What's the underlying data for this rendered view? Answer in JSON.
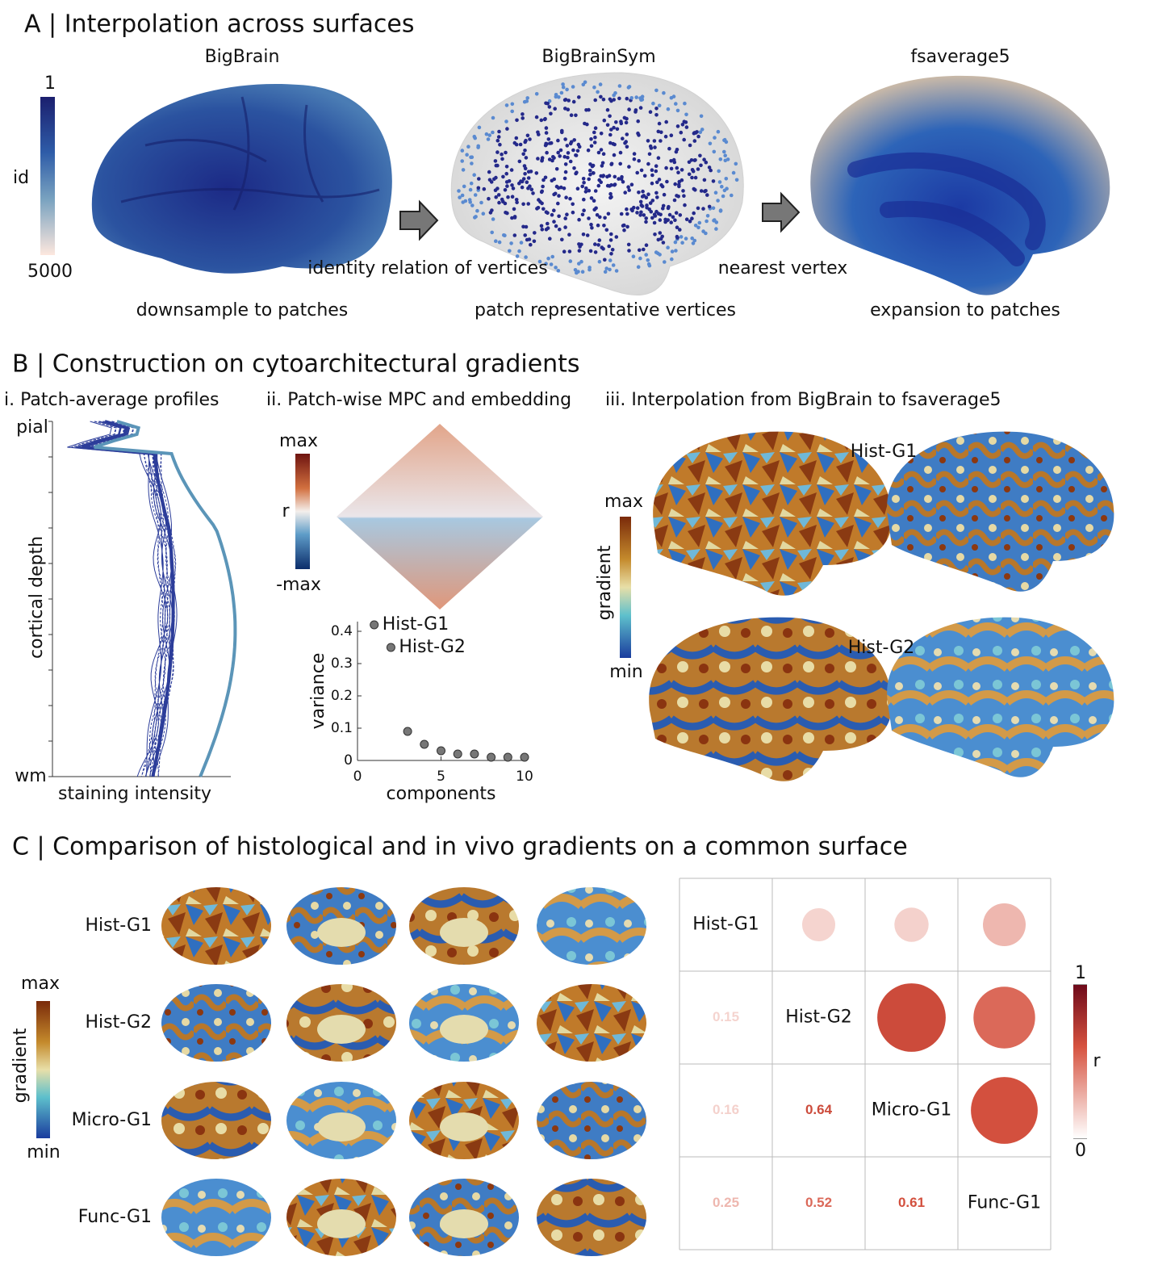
{
  "panel_a": {
    "title": "A |  Interpolation across surfaces",
    "colorbar": {
      "top": "1",
      "label": "id",
      "bottom": "5000"
    },
    "surfaces": [
      "BigBrain",
      "BigBrainSym",
      "fsaverage5"
    ],
    "steps": [
      "downsample to patches",
      "patch representative vertices",
      "expansion to patches"
    ],
    "arrows": [
      "identity relation of vertices",
      "nearest vertex"
    ]
  },
  "panel_b": {
    "title": "B | Construction on cytoarchitectural gradients",
    "subtitles": [
      "i. Patch-average profiles",
      "ii. Patch-wise MPC and embedding",
      "iii. Interpolation from BigBrain to fsaverage5"
    ],
    "profiles": {
      "top": "pial",
      "bottom": "wm",
      "y_label": "cortical depth",
      "x_label": "staining intensity"
    },
    "mpc_colorbar": {
      "top": "max",
      "label": "r",
      "bottom": "-max"
    },
    "gradient_colorbar": {
      "top": "max",
      "label": "gradient",
      "bottom": "min"
    },
    "maps": [
      "Hist-G1",
      "Hist-G2"
    ]
  },
  "chart_data": {
    "type": "scatter",
    "x": [
      1,
      2,
      3,
      4,
      5,
      6,
      7,
      8,
      9,
      10
    ],
    "values": [
      0.42,
      0.35,
      0.09,
      0.05,
      0.03,
      0.02,
      0.02,
      0.01,
      0.01,
      0.01
    ],
    "point_labels": [
      "Hist-G1",
      "Hist-G2",
      null,
      null,
      null,
      null,
      null,
      null,
      null,
      null
    ],
    "color": "#777777",
    "xlim": [
      0,
      10
    ],
    "ylim": [
      0,
      0.43
    ],
    "xticks": [
      0,
      5,
      10
    ],
    "yticks": [
      0,
      0.1,
      0.2,
      0.3,
      0.4
    ],
    "x_label": "components",
    "y_label": "variance"
  },
  "panel_c": {
    "title": "C | Comparison of histological and in vivo gradients on a common surface",
    "rows": [
      "Hist-G1",
      "Hist-G2",
      "Micro-G1",
      "Func-G1"
    ],
    "colorbar": {
      "top": "max",
      "label": "gradient",
      "bottom": "min"
    },
    "correlation": {
      "r": [
        [
          null,
          null,
          null,
          null
        ],
        [
          0.15,
          null,
          null,
          null
        ],
        [
          0.16,
          0.64,
          null,
          null
        ],
        [
          0.25,
          0.52,
          0.61,
          null
        ]
      ],
      "clim": [
        0,
        1
      ],
      "cticks": [
        0,
        1
      ],
      "label": "r"
    }
  }
}
